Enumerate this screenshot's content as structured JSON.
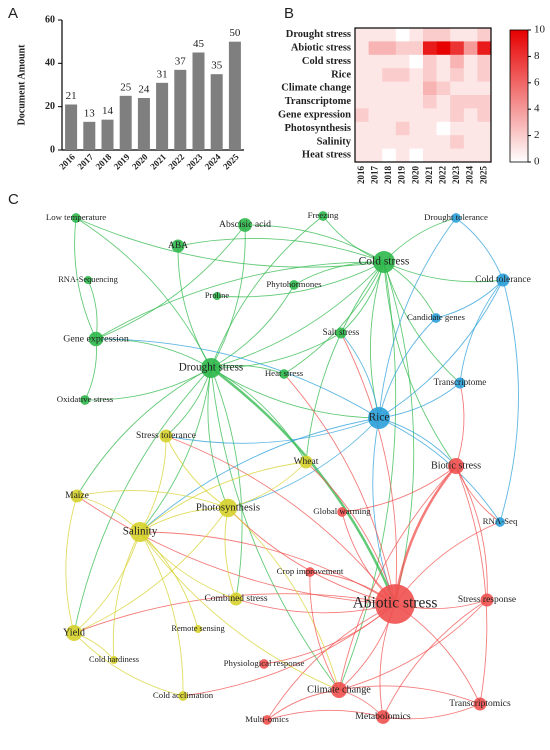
{
  "chart_data": [
    {
      "type": "bar",
      "panel": "A",
      "ylabel": "Document Amount",
      "categories": [
        "2016",
        "2017",
        "2018",
        "2019",
        "2020",
        "2021",
        "2022",
        "2023",
        "2024",
        "2025"
      ],
      "values": [
        21,
        13,
        14,
        25,
        24,
        31,
        37,
        45,
        35,
        50
      ],
      "color": "#7f7f7f",
      "ylim": [
        0,
        60
      ],
      "yticks": [
        0,
        20,
        40,
        60
      ]
    },
    {
      "type": "heatmap",
      "panel": "B",
      "rows": [
        "Drought stress",
        "Abiotic stress",
        "Cold stress",
        "Rice",
        "Climate change",
        "Transcriptome",
        "Gene expression",
        "Photosynthesis",
        "Salinity",
        "Heat stress"
      ],
      "categories": [
        "2016",
        "2017",
        "2018",
        "2019",
        "2020",
        "2021",
        "2022",
        "2023",
        "2024",
        "2025"
      ],
      "values": [
        [
          1,
          1,
          1,
          0,
          1,
          2,
          2,
          1,
          1,
          2
        ],
        [
          1,
          3,
          3,
          2,
          2,
          9,
          10,
          8,
          4,
          9
        ],
        [
          1,
          1,
          1,
          1,
          0,
          2,
          1,
          3,
          1,
          2
        ],
        [
          1,
          1,
          2,
          2,
          1,
          2,
          1,
          2,
          1,
          2
        ],
        [
          1,
          1,
          1,
          1,
          1,
          3,
          2,
          1,
          1,
          1
        ],
        [
          1,
          1,
          1,
          1,
          1,
          2,
          1,
          2,
          2,
          2
        ],
        [
          2,
          1,
          1,
          1,
          1,
          1,
          1,
          2,
          1,
          2
        ],
        [
          1,
          1,
          1,
          2,
          1,
          1,
          0,
          1,
          1,
          1
        ],
        [
          1,
          1,
          1,
          1,
          1,
          1,
          1,
          2,
          1,
          1
        ],
        [
          1,
          1,
          0,
          1,
          0,
          1,
          1,
          1,
          1,
          1
        ]
      ],
      "color": "#e60000",
      "clim": [
        0,
        10
      ],
      "cticks": [
        0,
        2,
        4,
        6,
        8,
        10
      ]
    },
    {
      "type": "network",
      "panel": "C",
      "nodes": [
        {
          "label": "Low temperature",
          "color": "#2db84a",
          "size": 2
        },
        {
          "label": "Abscisic acid",
          "color": "#2db84a",
          "size": 6
        },
        {
          "label": "Freezing",
          "color": "#2db84a",
          "size": 2
        },
        {
          "label": "Drought tolerance",
          "color": "#2a9fd8",
          "size": 2
        },
        {
          "label": "ABA",
          "color": "#2db84a",
          "size": 5
        },
        {
          "label": "Cold stress",
          "color": "#2db84a",
          "size": 20
        },
        {
          "label": "Cold tolerance",
          "color": "#2a9fd8",
          "size": 5
        },
        {
          "label": "RNA-Sequencing",
          "color": "#2db84a",
          "size": 1
        },
        {
          "label": "Proline",
          "color": "#2db84a",
          "size": 1
        },
        {
          "label": "Phytohormones",
          "color": "#2db84a",
          "size": 2
        },
        {
          "label": "Candidate genes",
          "color": "#2a9fd8",
          "size": 2
        },
        {
          "label": "Salt stress",
          "color": "#2db84a",
          "size": 3
        },
        {
          "label": "Gene expression",
          "color": "#2db84a",
          "size": 7
        },
        {
          "label": "Drought stress",
          "color": "#2db84a",
          "size": 16
        },
        {
          "label": "Heat stress",
          "color": "#2db84a",
          "size": 2
        },
        {
          "label": "Transcriptome",
          "color": "#2a9fd8",
          "size": 3
        },
        {
          "label": "Oxidative stress",
          "color": "#2db84a",
          "size": 2
        },
        {
          "label": "Rice",
          "color": "#2a9fd8",
          "size": 20
        },
        {
          "label": "Stress tolerance",
          "color": "#d6d22c",
          "size": 5
        },
        {
          "label": "Wheat",
          "color": "#d6d22c",
          "size": 5
        },
        {
          "label": "Biotic stress",
          "color": "#f0504e",
          "size": 9
        },
        {
          "label": "Maize",
          "color": "#d6d22c",
          "size": 5
        },
        {
          "label": "Photosynthesis",
          "color": "#d6d22c",
          "size": 13
        },
        {
          "label": "Global warming",
          "color": "#f0504e",
          "size": 2
        },
        {
          "label": "Salinity",
          "color": "#d6d22c",
          "size": 16
        },
        {
          "label": "RNA-Seq",
          "color": "#2a9fd8",
          "size": 2
        },
        {
          "label": "Crop improvement",
          "color": "#f0504e",
          "size": 2
        },
        {
          "label": "Combined stress",
          "color": "#d6d22c",
          "size": 5
        },
        {
          "label": "Abiotic stress",
          "color": "#f0504e",
          "size": 80
        },
        {
          "label": "Stress response",
          "color": "#f0504e",
          "size": 5
        },
        {
          "label": "Yield",
          "color": "#d6d22c",
          "size": 9
        },
        {
          "label": "Remote sensing",
          "color": "#d6d22c",
          "size": 1
        },
        {
          "label": "Cold hardiness",
          "color": "#d6d22c",
          "size": 1
        },
        {
          "label": "Physiological response",
          "color": "#f0504e",
          "size": 2
        },
        {
          "label": "Climate change",
          "color": "#f0504e",
          "size": 9
        },
        {
          "label": "Cold acclimation",
          "color": "#d6d22c",
          "size": 2
        },
        {
          "label": "Transcriptomics",
          "color": "#f0504e",
          "size": 5
        },
        {
          "label": "Multi-omics",
          "color": "#f0504e",
          "size": 2
        },
        {
          "label": "Metabolomics",
          "color": "#f0504e",
          "size": 6
        }
      ],
      "links": [
        [
          "Cold stress",
          "Low temperature"
        ],
        [
          "Cold stress",
          "Abscisic acid"
        ],
        [
          "Cold stress",
          "Freezing"
        ],
        [
          "Cold stress",
          "ABA"
        ],
        [
          "Cold stress",
          "Drought tolerance"
        ],
        [
          "Cold stress",
          "Cold tolerance"
        ],
        [
          "Cold stress",
          "Drought stress"
        ],
        [
          "Cold stress",
          "Gene expression"
        ],
        [
          "Cold stress",
          "Salt stress"
        ],
        [
          "Cold stress",
          "Rice"
        ],
        [
          "Cold stress",
          "Abiotic stress"
        ],
        [
          "Cold stress",
          "Phytohormones"
        ],
        [
          "Cold stress",
          "Candidate genes"
        ],
        [
          "Cold stress",
          "Transcriptome"
        ],
        [
          "Cold stress",
          "Heat stress"
        ],
        [
          "Cold stress",
          "Wheat"
        ],
        [
          "Cold stress",
          "Climate change"
        ],
        [
          "Cold stress",
          "Biotic stress"
        ],
        [
          "Cold stress",
          "Proline"
        ],
        [
          "Drought stress",
          "Abscisic acid"
        ],
        [
          "Drought stress",
          "ABA"
        ],
        [
          "Drought stress",
          "Gene expression"
        ],
        [
          "Drought stress",
          "Oxidative stress"
        ],
        [
          "Drought stress",
          "Low temperature"
        ],
        [
          "Drought stress",
          "Stress tolerance"
        ],
        [
          "Drought stress",
          "Photosynthesis"
        ],
        [
          "Drought stress",
          "Salinity"
        ],
        [
          "Drought stress",
          "Maize"
        ],
        [
          "Drought stress",
          "Wheat"
        ],
        [
          "Drought stress",
          "Rice"
        ],
        [
          "Drought stress",
          "Abiotic stress"
        ],
        [
          "Drought stress",
          "Yield"
        ],
        [
          "Drought stress",
          "Heat stress"
        ],
        [
          "Drought stress",
          "Salt stress"
        ],
        [
          "Drought stress",
          "Combined stress"
        ],
        [
          "Drought stress",
          "Climate change"
        ],
        [
          "Drought stress",
          "Freezing"
        ],
        [
          "Drought stress",
          "Phytohormones"
        ],
        [
          "Rice",
          "Drought tolerance"
        ],
        [
          "Rice",
          "Cold tolerance"
        ],
        [
          "Rice",
          "Candidate genes"
        ],
        [
          "Rice",
          "Transcriptome"
        ],
        [
          "Rice",
          "RNA-Seq"
        ],
        [
          "Rice",
          "Abiotic stress"
        ],
        [
          "Rice",
          "Biotic stress"
        ],
        [
          "Rice",
          "Salinity"
        ],
        [
          "Rice",
          "Stress tolerance"
        ],
        [
          "Rice",
          "Gene expression"
        ],
        [
          "Rice",
          "Photosynthesis"
        ],
        [
          "Rice",
          "Salt stress"
        ],
        [
          "Abiotic stress",
          "Biotic stress"
        ],
        [
          "Abiotic stress",
          "Stress response"
        ],
        [
          "Abiotic stress",
          "Transcriptomics"
        ],
        [
          "Abiotic stress",
          "Metabolomics"
        ],
        [
          "Abiotic stress",
          "Climate change"
        ],
        [
          "Abiotic stress",
          "Multi-omics"
        ],
        [
          "Abiotic stress",
          "Physiological response"
        ],
        [
          "Abiotic stress",
          "Crop improvement"
        ],
        [
          "Abiotic stress",
          "Global warming"
        ],
        [
          "Abiotic stress",
          "Salinity"
        ],
        [
          "Abiotic stress",
          "Photosynthesis"
        ],
        [
          "Abiotic stress",
          "Wheat"
        ],
        [
          "Abiotic stress",
          "Combined stress"
        ],
        [
          "Abiotic stress",
          "Yield"
        ],
        [
          "Abiotic stress",
          "Maize"
        ],
        [
          "Abiotic stress",
          "Stress tolerance"
        ],
        [
          "Abiotic stress",
          "Cold acclimation"
        ],
        [
          "Abiotic stress",
          "Salt stress"
        ],
        [
          "Abiotic stress",
          "RNA-Seq"
        ],
        [
          "Abiotic stress",
          "Heat stress"
        ],
        [
          "Salinity",
          "Photosynthesis"
        ],
        [
          "Salinity",
          "Maize"
        ],
        [
          "Salinity",
          "Yield"
        ],
        [
          "Salinity",
          "Stress tolerance"
        ],
        [
          "Salinity",
          "Wheat"
        ],
        [
          "Salinity",
          "Combined stress"
        ],
        [
          "Salinity",
          "Remote sensing"
        ],
        [
          "Salinity",
          "Cold hardiness"
        ],
        [
          "Salinity",
          "Cold acclimation"
        ],
        [
          "Salinity",
          "Climate change"
        ],
        [
          "Photosynthesis",
          "Stress tolerance"
        ],
        [
          "Photosynthesis",
          "Wheat"
        ],
        [
          "Photosynthesis",
          "Yield"
        ],
        [
          "Photosynthesis",
          "Combined stress"
        ],
        [
          "Photosynthesis",
          "Climate change"
        ],
        [
          "Photosynthesis",
          "Maize"
        ],
        [
          "Biotic stress",
          "Stress response"
        ],
        [
          "Biotic stress",
          "RNA-Seq"
        ],
        [
          "Biotic stress",
          "Transcriptomics"
        ],
        [
          "Biotic stress",
          "Climate change"
        ],
        [
          "Biotic stress",
          "Global warming"
        ],
        [
          "Biotic stress",
          "Transcriptome"
        ],
        [
          "Climate change",
          "Metabolomics"
        ],
        [
          "Climate change",
          "Multi-omics"
        ],
        [
          "Climate change",
          "Transcriptomics"
        ],
        [
          "Climate change",
          "Stress response"
        ],
        [
          "Climate change",
          "Crop improvement"
        ],
        [
          "Gene expression",
          "Abscisic acid"
        ],
        [
          "Gene expression",
          "Low temperature"
        ],
        [
          "Gene expression",
          "RNA-Sequencing"
        ],
        [
          "Gene expression",
          "Oxidative stress"
        ],
        [
          "Cold tolerance",
          "Drought tolerance"
        ],
        [
          "Cold tolerance",
          "Candidate genes"
        ],
        [
          "Cold tolerance",
          "Transcriptome"
        ],
        [
          "Cold tolerance",
          "RNA-Seq"
        ],
        [
          "Metabolomics",
          "Transcriptomics"
        ],
        [
          "Metabolomics",
          "Stress response"
        ],
        [
          "Metabolomics",
          "Multi-omics"
        ],
        [
          "Yield",
          "Maize"
        ],
        [
          "Yield",
          "Cold acclimation"
        ],
        [
          "Yield",
          "Cold hardiness"
        ]
      ]
    }
  ]
}
